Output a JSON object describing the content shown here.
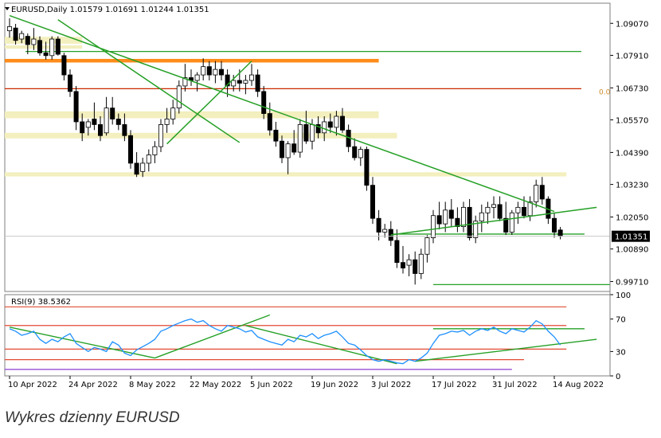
{
  "chart_data": {
    "type": "candlestick",
    "symbol_line": "EURUSD,Daily  1.01579 1.01691 1.01244 1.01351",
    "last_price_label": "1.01351",
    "last_price": 1.01351,
    "fib_label": "0.0",
    "caption": "Wykres dzienny EURUSD",
    "price_axis": {
      "ylim": [
        0.9935,
        1.098
      ],
      "ticks": [
        "1.09070",
        "1.07910",
        "1.06730",
        "1.05570",
        "1.04390",
        "1.03230",
        "1.02050",
        "1.00890",
        "0.99710"
      ],
      "tick_values": [
        1.0907,
        1.0791,
        1.0673,
        1.0557,
        1.0439,
        1.0323,
        1.0205,
        1.0089,
        0.9971
      ]
    },
    "x_axis": {
      "labels": [
        "10 Apr 2022",
        "24 Apr 2022",
        "8 May 2022",
        "22 May 2022",
        "5 Jun 2022",
        "19 Jun 2022",
        "3 Jul 2022",
        "17 Jul 2022",
        "31 Jul 2022",
        "14 Aug 2022"
      ],
      "label_index": [
        0,
        10,
        20,
        30,
        40,
        50,
        60,
        70,
        80,
        90
      ]
    },
    "candles": [
      [
        1.088,
        1.0925,
        1.0855,
        1.0895
      ],
      [
        1.089,
        1.0905,
        1.083,
        1.0845
      ],
      [
        1.085,
        1.088,
        1.0835,
        1.087
      ],
      [
        1.086,
        1.087,
        1.0795,
        1.083
      ],
      [
        1.083,
        1.089,
        1.081,
        1.085
      ],
      [
        1.0845,
        1.086,
        1.079,
        1.08
      ],
      [
        1.08,
        1.084,
        1.0775,
        1.079
      ],
      [
        1.079,
        1.086,
        1.0775,
        1.085
      ],
      [
        1.085,
        1.086,
        1.079,
        1.0795
      ],
      [
        1.079,
        1.08,
        1.07,
        1.072
      ],
      [
        1.072,
        1.074,
        1.064,
        1.066
      ],
      [
        1.066,
        1.068,
        1.052,
        1.055
      ],
      [
        1.055,
        1.058,
        1.048,
        1.051
      ],
      [
        1.053,
        1.056,
        1.05,
        1.055
      ],
      [
        1.056,
        1.062,
        1.052,
        1.054
      ],
      [
        1.054,
        1.057,
        1.048,
        1.05
      ],
      [
        1.051,
        1.064,
        1.05,
        1.06
      ],
      [
        1.06,
        1.064,
        1.054,
        1.056
      ],
      [
        1.056,
        1.058,
        1.052,
        1.054
      ],
      [
        1.054,
        1.058,
        1.048,
        1.05
      ],
      [
        1.05,
        1.052,
        1.038,
        1.04
      ],
      [
        1.04,
        1.044,
        1.035,
        1.036
      ],
      [
        1.037,
        1.042,
        1.035,
        1.04
      ],
      [
        1.04,
        1.045,
        1.037,
        1.043
      ],
      [
        1.043,
        1.048,
        1.04,
        1.046
      ],
      [
        1.046,
        1.056,
        1.044,
        1.054
      ],
      [
        1.054,
        1.06,
        1.051,
        1.056
      ],
      [
        1.056,
        1.063,
        1.054,
        1.06
      ],
      [
        1.06,
        1.07,
        1.058,
        1.068
      ],
      [
        1.068,
        1.076,
        1.066,
        1.071
      ],
      [
        1.071,
        1.074,
        1.068,
        1.07
      ],
      [
        1.07,
        1.073,
        1.066,
        1.072
      ],
      [
        1.072,
        1.078,
        1.07,
        1.075
      ],
      [
        1.075,
        1.077,
        1.07,
        1.072
      ],
      [
        1.072,
        1.077,
        1.069,
        1.074
      ],
      [
        1.074,
        1.077,
        1.07,
        1.072
      ],
      [
        1.072,
        1.074,
        1.064,
        1.068
      ],
      [
        1.068,
        1.072,
        1.066,
        1.07
      ],
      [
        1.07,
        1.074,
        1.066,
        1.069
      ],
      [
        1.069,
        1.072,
        1.065,
        1.07
      ],
      [
        1.07,
        1.076,
        1.068,
        1.072
      ],
      [
        1.072,
        1.074,
        1.064,
        1.066
      ],
      [
        1.066,
        1.068,
        1.056,
        1.058
      ],
      [
        1.058,
        1.062,
        1.05,
        1.052
      ],
      [
        1.052,
        1.055,
        1.046,
        1.048
      ],
      [
        1.048,
        1.05,
        1.04,
        1.042
      ],
      [
        1.042,
        1.048,
        1.036,
        1.047
      ],
      [
        1.047,
        1.052,
        1.043,
        1.044
      ],
      [
        1.044,
        1.056,
        1.042,
        1.054
      ],
      [
        1.054,
        1.059,
        1.047,
        1.048
      ],
      [
        1.048,
        1.056,
        1.045,
        1.054
      ],
      [
        1.054,
        1.057,
        1.049,
        1.051
      ],
      [
        1.051,
        1.057,
        1.048,
        1.055
      ],
      [
        1.055,
        1.058,
        1.051,
        1.053
      ],
      [
        1.053,
        1.059,
        1.05,
        1.057
      ],
      [
        1.057,
        1.06,
        1.051,
        1.052
      ],
      [
        1.052,
        1.054,
        1.044,
        1.046
      ],
      [
        1.046,
        1.049,
        1.041,
        1.042
      ],
      [
        1.042,
        1.046,
        1.039,
        1.045
      ],
      [
        1.045,
        1.046,
        1.03,
        1.032
      ],
      [
        1.032,
        1.035,
        1.018,
        1.02
      ],
      [
        1.02,
        1.023,
        1.012,
        1.015
      ],
      [
        1.015,
        1.018,
        1.013,
        1.016
      ],
      [
        1.016,
        1.019,
        1.01,
        1.012
      ],
      [
        1.012,
        1.016,
        1.002,
        1.004
      ],
      [
        1.004,
        1.01,
        1.0,
        1.002
      ],
      [
        1.003,
        1.007,
        0.999,
        1.005
      ],
      [
        1.005,
        1.008,
        0.996,
        1.0
      ],
      [
        1.0,
        1.009,
        0.998,
        1.007
      ],
      [
        1.007,
        1.014,
        1.004,
        1.013
      ],
      [
        1.013,
        1.023,
        1.011,
        1.021
      ],
      [
        1.021,
        1.026,
        1.016,
        1.018
      ],
      [
        1.018,
        1.026,
        1.015,
        1.023
      ],
      [
        1.023,
        1.027,
        1.017,
        1.02
      ],
      [
        1.02,
        1.024,
        1.015,
        1.017
      ],
      [
        1.017,
        1.026,
        1.015,
        1.024
      ],
      [
        1.024,
        1.027,
        1.012,
        1.013
      ],
      [
        1.013,
        1.021,
        1.011,
        1.019
      ],
      [
        1.019,
        1.025,
        1.015,
        1.022
      ],
      [
        1.022,
        1.026,
        1.018,
        1.024
      ],
      [
        1.024,
        1.028,
        1.02,
        1.025
      ],
      [
        1.025,
        1.028,
        1.019,
        1.02
      ],
      [
        1.02,
        1.026,
        1.014,
        1.015
      ],
      [
        1.015,
        1.023,
        1.014,
        1.022
      ],
      [
        1.022,
        1.026,
        1.018,
        1.024
      ],
      [
        1.024,
        1.028,
        1.02,
        1.021
      ],
      [
        1.021,
        1.028,
        1.019,
        1.026
      ],
      [
        1.026,
        1.034,
        1.024,
        1.032
      ],
      [
        1.032,
        1.035,
        1.025,
        1.027
      ],
      [
        1.027,
        1.028,
        1.018,
        1.02
      ],
      [
        1.02,
        1.022,
        1.013,
        1.015
      ],
      [
        1.0158,
        1.0169,
        1.0124,
        1.0135
      ]
    ],
    "zones": [
      {
        "from": 1.0833,
        "to": 1.0858,
        "color": "#f3efbe"
      },
      {
        "from": 1.0815,
        "to": 1.0827,
        "color": "#f3efbe"
      },
      {
        "from": 1.0765,
        "to": 1.0778,
        "color": "#ff8c1a"
      },
      {
        "from": 1.0563,
        "to": 1.0588,
        "color": "#f3efbe"
      },
      {
        "from": 1.049,
        "to": 1.051,
        "color": "#f3efbe"
      },
      {
        "from": 1.0352,
        "to": 1.0367,
        "color": "#f3efbe"
      }
    ],
    "hlines": [
      {
        "value": 1.067,
        "color": "#cc2a00"
      },
      {
        "value": 1.0805,
        "color": "#26a026"
      },
      {
        "value": 1.0143,
        "color": "#26a026"
      },
      {
        "value": 0.996,
        "color": "#26a026"
      }
    ],
    "trendlines": [
      {
        "from": [
          0,
          1.0935
        ],
        "to": [
          90,
          1.0225
        ],
        "color": "#26a026"
      },
      {
        "from": [
          8,
          1.092
        ],
        "to": [
          38,
          1.0475
        ],
        "color": "#26a026"
      },
      {
        "from": [
          26,
          1.047
        ],
        "to": [
          40,
          1.077
        ],
        "color": "#26a026"
      },
      {
        "from": [
          63,
          1.014
        ],
        "to": [
          97,
          1.024
        ],
        "color": "#26a026"
      }
    ],
    "rsi": {
      "label": "RSI(9) 38.5362",
      "period": 9,
      "last": 38.5362,
      "ylim": [
        0,
        100
      ],
      "ticks": [
        100,
        70,
        30,
        0
      ],
      "ticklabels": [
        "100",
        "70",
        "30",
        "0"
      ],
      "levels": [
        {
          "value": 85,
          "color": "#e34a33"
        },
        {
          "value": 62,
          "color": "#e34a33"
        },
        {
          "value": 33,
          "color": "#e34a33"
        },
        {
          "value": 20,
          "color": "#e34a33"
        },
        {
          "value": 8,
          "color": "#8e3bd0"
        }
      ],
      "values": [
        58,
        55,
        50,
        52,
        55,
        45,
        40,
        45,
        42,
        48,
        52,
        40,
        35,
        30,
        35,
        33,
        30,
        42,
        38,
        28,
        25,
        32,
        36,
        40,
        45,
        55,
        58,
        62,
        65,
        68,
        70,
        66,
        68,
        62,
        58,
        55,
        62,
        60,
        58,
        54,
        56,
        48,
        45,
        42,
        40,
        38,
        45,
        42,
        50,
        48,
        52,
        46,
        50,
        52,
        55,
        48,
        40,
        38,
        32,
        25,
        20,
        18,
        20,
        18,
        16,
        15,
        20,
        18,
        22,
        28,
        40,
        50,
        52,
        55,
        54,
        56,
        50,
        55,
        58,
        56,
        60,
        55,
        52,
        58,
        56,
        54,
        60,
        68,
        64,
        55,
        48,
        38
      ]
    }
  }
}
